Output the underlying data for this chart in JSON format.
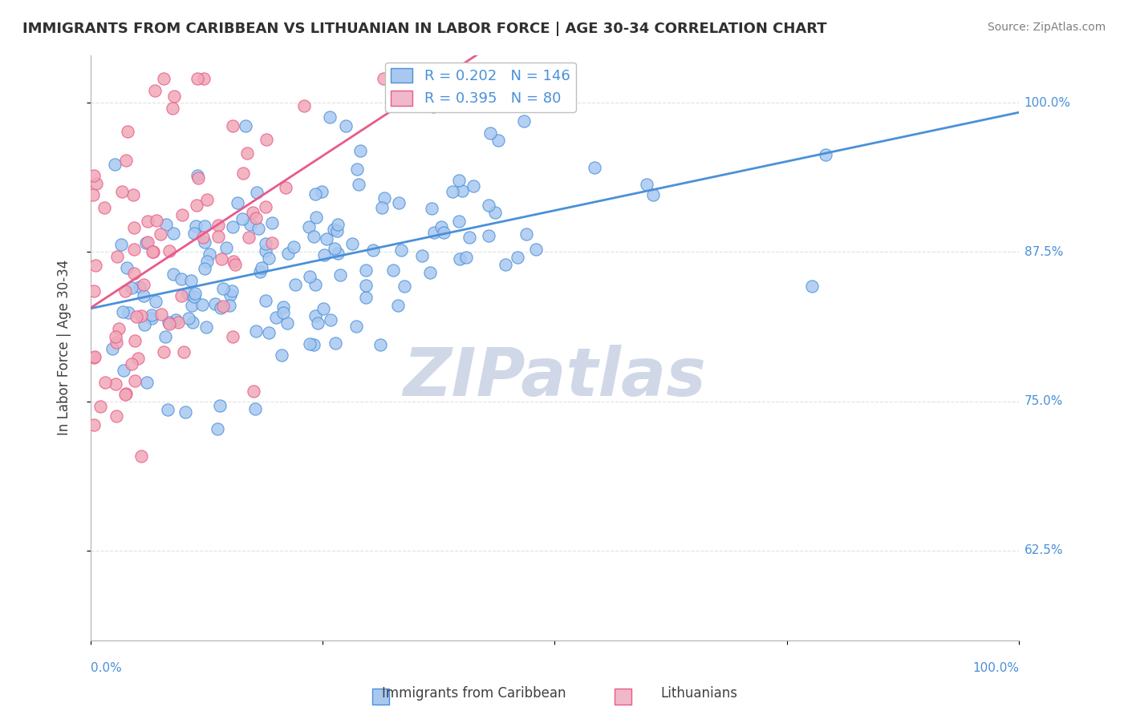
{
  "title": "IMMIGRANTS FROM CARIBBEAN VS LITHUANIAN IN LABOR FORCE | AGE 30-34 CORRELATION CHART",
  "source": "Source: ZipAtlas.com",
  "ylabel": "In Labor Force | Age 30-34",
  "xlabel": "",
  "xlim": [
    0.0,
    1.0
  ],
  "ylim": [
    0.55,
    1.04
  ],
  "yticks": [
    0.625,
    0.75,
    0.875,
    1.0
  ],
  "ytick_labels": [
    "62.5%",
    "75.0%",
    "87.5%",
    "100.0%"
  ],
  "xticks": [
    0.0,
    0.25,
    0.5,
    0.75,
    1.0
  ],
  "xtick_labels": [
    "0.0%",
    "",
    "",
    "",
    "100.0%"
  ],
  "caribbean_R": 0.202,
  "caribbean_N": 146,
  "lithuanian_R": 0.395,
  "lithuanian_N": 80,
  "caribbean_color": "#a8c8f0",
  "lithuanian_color": "#f0a8b8",
  "caribbean_line_color": "#4a90d9",
  "lithuanian_line_color": "#e85a8a",
  "background_color": "#ffffff",
  "grid_color": "#e0e0e0",
  "title_color": "#303030",
  "watermark_text": "ZIPatlas",
  "watermark_color": "#d0d8e8",
  "legend_box_color_caribbean": "#a8c8f0",
  "legend_box_color_lithuanian": "#f0b8c8",
  "legend_label_caribbean": "Immigrants from Caribbean",
  "legend_label_lithuanian": "Lithuanians",
  "right_label_color": "#4a90d9",
  "caribbean_seed": 42,
  "lithuanian_seed": 7
}
